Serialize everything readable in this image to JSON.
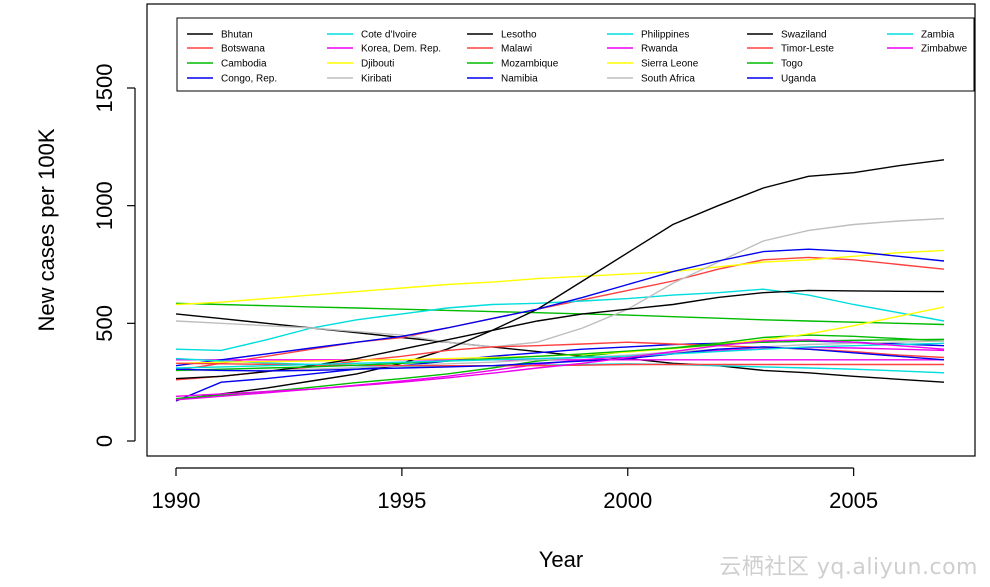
{
  "watermark": "云栖社区 yq.aliyun.com",
  "chart_data": {
    "type": "line",
    "title": "",
    "xlabel": "Year",
    "ylabel": "New cases per 100K",
    "xlim": [
      1990,
      2007
    ],
    "ylim": [
      0,
      1800
    ],
    "xticks": [
      1990,
      1995,
      2000,
      2005
    ],
    "yticks": [
      0,
      500,
      1000,
      1500
    ],
    "legend_position": "top",
    "x": [
      1990,
      1991,
      1992,
      1993,
      1994,
      1995,
      1996,
      1997,
      1998,
      1999,
      2000,
      2001,
      2002,
      2003,
      2004,
      2005,
      2006,
      2007
    ],
    "series": [
      {
        "name": "Bhutan",
        "color": "#000000",
        "values": [
          540,
          520,
          500,
          480,
          460,
          440,
          420,
          400,
          380,
          360,
          350,
          330,
          320,
          300,
          290,
          275,
          262,
          250
        ]
      },
      {
        "name": "Botswana",
        "color": "#ff4040",
        "values": [
          300,
          330,
          360,
          390,
          420,
          440,
          480,
          520,
          560,
          600,
          640,
          680,
          730,
          770,
          780,
          770,
          750,
          730
        ]
      },
      {
        "name": "Cambodia",
        "color": "#00bb00",
        "values": [
          585,
          580,
          575,
          570,
          565,
          560,
          555,
          550,
          545,
          540,
          535,
          528,
          522,
          515,
          510,
          505,
          500,
          495
        ]
      },
      {
        "name": "Congo, Rep.",
        "color": "#0000ee",
        "values": [
          170,
          250,
          265,
          285,
          305,
          320,
          340,
          360,
          375,
          390,
          400,
          410,
          415,
          420,
          425,
          420,
          412,
          405
        ]
      },
      {
        "name": "Cote d'Ivoire",
        "color": "#00dddd",
        "values": [
          390,
          385,
          430,
          480,
          515,
          540,
          565,
          580,
          585,
          595,
          605,
          620,
          630,
          645,
          620,
          580,
          545,
          510
        ]
      },
      {
        "name": "Korea, Dem. Rep.",
        "color": "#ee00ee",
        "values": [
          345,
          345,
          345,
          345,
          345,
          345,
          345,
          345,
          345,
          345,
          345,
          345,
          345,
          345,
          345,
          345,
          345,
          345
        ]
      },
      {
        "name": "Djibouti",
        "color": "#ffff00",
        "values": [
          580,
          590,
          605,
          620,
          635,
          650,
          665,
          675,
          690,
          700,
          710,
          720,
          740,
          760,
          770,
          785,
          800,
          810
        ]
      },
      {
        "name": "Kiribati",
        "color": "#bebebe",
        "values": [
          510,
          500,
          490,
          480,
          465,
          450,
          420,
          400,
          420,
          480,
          560,
          670,
          760,
          850,
          895,
          920,
          935,
          945
        ]
      },
      {
        "name": "Lesotho",
        "color": "#000000",
        "values": [
          175,
          200,
          225,
          255,
          285,
          330,
          390,
          470,
          560,
          680,
          800,
          920,
          1000,
          1075,
          1125,
          1140,
          1170,
          1195
        ]
      },
      {
        "name": "Malawi",
        "color": "#ff4040",
        "values": [
          260,
          275,
          295,
          315,
          340,
          360,
          385,
          400,
          405,
          412,
          420,
          412,
          405,
          398,
          390,
          380,
          365,
          355
        ]
      },
      {
        "name": "Mozambique",
        "color": "#00bb00",
        "values": [
          180,
          195,
          210,
          228,
          248,
          265,
          285,
          310,
          340,
          360,
          380,
          395,
          415,
          440,
          450,
          445,
          435,
          425
        ]
      },
      {
        "name": "Namibia",
        "color": "#0000ee",
        "values": [
          320,
          345,
          370,
          395,
          420,
          445,
          480,
          520,
          560,
          610,
          665,
          720,
          765,
          805,
          815,
          805,
          785,
          765
        ]
      },
      {
        "name": "Philippines",
        "color": "#00dddd",
        "values": [
          350,
          340,
          332,
          325,
          320,
          318,
          318,
          320,
          322,
          325,
          328,
          325,
          320,
          315,
          310,
          305,
          298,
          290
        ]
      },
      {
        "name": "Rwanda",
        "color": "#ee00ee",
        "values": [
          175,
          190,
          205,
          220,
          237,
          255,
          275,
          300,
          325,
          345,
          360,
          375,
          385,
          392,
          398,
          395,
          390,
          385
        ]
      },
      {
        "name": "Sierra Leone",
        "color": "#ffff00",
        "values": [
          330,
          335,
          338,
          340,
          343,
          346,
          350,
          355,
          360,
          368,
          378,
          392,
          410,
          430,
          455,
          490,
          530,
          570
        ]
      },
      {
        "name": "South Africa",
        "color": "#bebebe",
        "values": [
          300,
          300,
          300,
          305,
          312,
          320,
          328,
          335,
          345,
          355,
          365,
          378,
          390,
          400,
          410,
          415,
          420,
          425
        ]
      },
      {
        "name": "Swaziland",
        "color": "#000000",
        "values": [
          265,
          275,
          295,
          320,
          350,
          390,
          430,
          470,
          510,
          540,
          560,
          580,
          610,
          630,
          640,
          638,
          636,
          635
        ]
      },
      {
        "name": "Timor-Leste",
        "color": "#ff4040",
        "values": [
          330,
          328,
          326,
          324,
          322,
          320,
          320,
          320,
          320,
          322,
          325,
          325,
          325,
          325,
          325,
          325,
          325,
          325
        ]
      },
      {
        "name": "Togo",
        "color": "#00bb00",
        "values": [
          300,
          305,
          310,
          315,
          322,
          330,
          340,
          350,
          360,
          370,
          382,
          395,
          410,
          420,
          425,
          428,
          430,
          432
        ]
      },
      {
        "name": "Uganda",
        "color": "#0000ee",
        "values": [
          305,
          300,
          298,
          300,
          305,
          310,
          315,
          320,
          330,
          340,
          350,
          370,
          390,
          400,
          390,
          375,
          360,
          345
        ]
      },
      {
        "name": "Zambia",
        "color": "#00dddd",
        "values": [
          310,
          315,
          320,
          325,
          330,
          335,
          340,
          345,
          350,
          355,
          360,
          370,
          380,
          390,
          400,
          405,
          410,
          415
        ]
      },
      {
        "name": "Zimbabwe",
        "color": "#ee00ee",
        "values": [
          190,
          200,
          210,
          220,
          235,
          250,
          268,
          288,
          310,
          330,
          355,
          380,
          405,
          425,
          430,
          420,
          405,
          390
        ]
      }
    ]
  }
}
